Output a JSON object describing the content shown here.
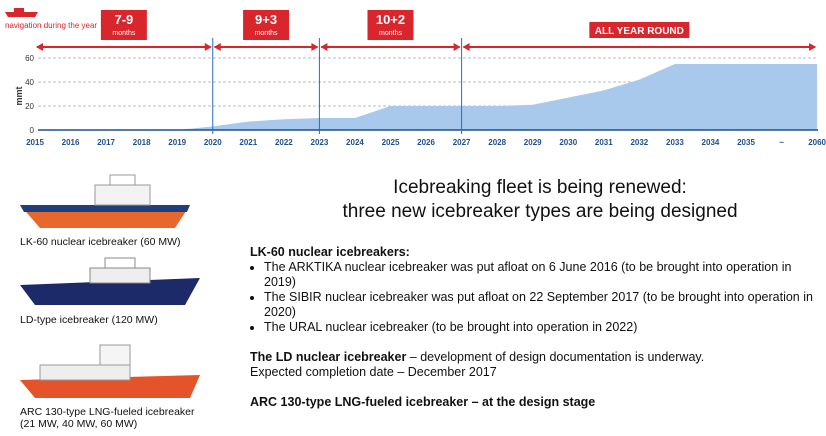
{
  "chart_data": {
    "type": "area",
    "note": "navigation during the year",
    "ylabel": "mmt",
    "categories": [
      "2015",
      "2016",
      "2017",
      "2018",
      "2019",
      "2020",
      "2021",
      "2022",
      "2023",
      "2024",
      "2025",
      "2026",
      "2027",
      "2028",
      "2029",
      "2030",
      "2031",
      "2032",
      "2033",
      "2034",
      "2035",
      "~",
      "2060"
    ],
    "values": [
      0,
      0,
      0,
      0,
      0,
      3,
      7,
      9,
      10,
      10,
      20,
      20,
      20,
      20,
      21,
      27,
      33,
      42,
      55,
      55,
      55,
      55,
      55
    ],
    "color": "#a9c9ec",
    "ylim": [
      0,
      65
    ],
    "yticks": [
      0,
      20,
      40,
      60
    ],
    "grid": true,
    "periods": [
      {
        "label": "7-9",
        "unit": "months",
        "from": "2015",
        "to": "2020"
      },
      {
        "label": "9+3",
        "unit": "months",
        "from": "2020",
        "to": "2023"
      },
      {
        "label": "10+2",
        "unit": "months",
        "from": "2023",
        "to": "2027"
      },
      {
        "label": "ALL YEAR ROUND",
        "from": "2027",
        "to": "2060"
      }
    ]
  },
  "slide": {
    "title": [
      "Icebreaking fleet is being renewed:",
      "three new icebreaker types are being designed"
    ],
    "ships": [
      {
        "caption": [
          "LK-60 nuclear icebreaker (60 MW)"
        ]
      },
      {
        "caption": [
          "LD-type icebreaker (120 MW)"
        ]
      },
      {
        "caption": [
          "ARC 130-type LNG-fueled icebreaker",
          "(21 MW, 40 MW, 60 MW)"
        ]
      }
    ],
    "lk60": {
      "heading": "LK-60 nuclear icebreakers:",
      "bullets": [
        "The ARKTIKA nuclear icebreaker was put afloat on  6 June 2016 (to be brought into operation in 2019)",
        "The SIBIR nuclear icebreaker was put afloat on 22 September 2017 (to be brought into operation in 2020)",
        "The URAL nuclear icebreaker (to be brought into operation in 2022)"
      ]
    },
    "ld": {
      "bold": "The LD nuclear icebreaker",
      "text": " – development of design documentation is underway.",
      "line2": "Expected completion date – December 2017"
    },
    "arc": {
      "bold": "ARC 130-type LNG-fueled icebreaker – at the design stage"
    }
  }
}
